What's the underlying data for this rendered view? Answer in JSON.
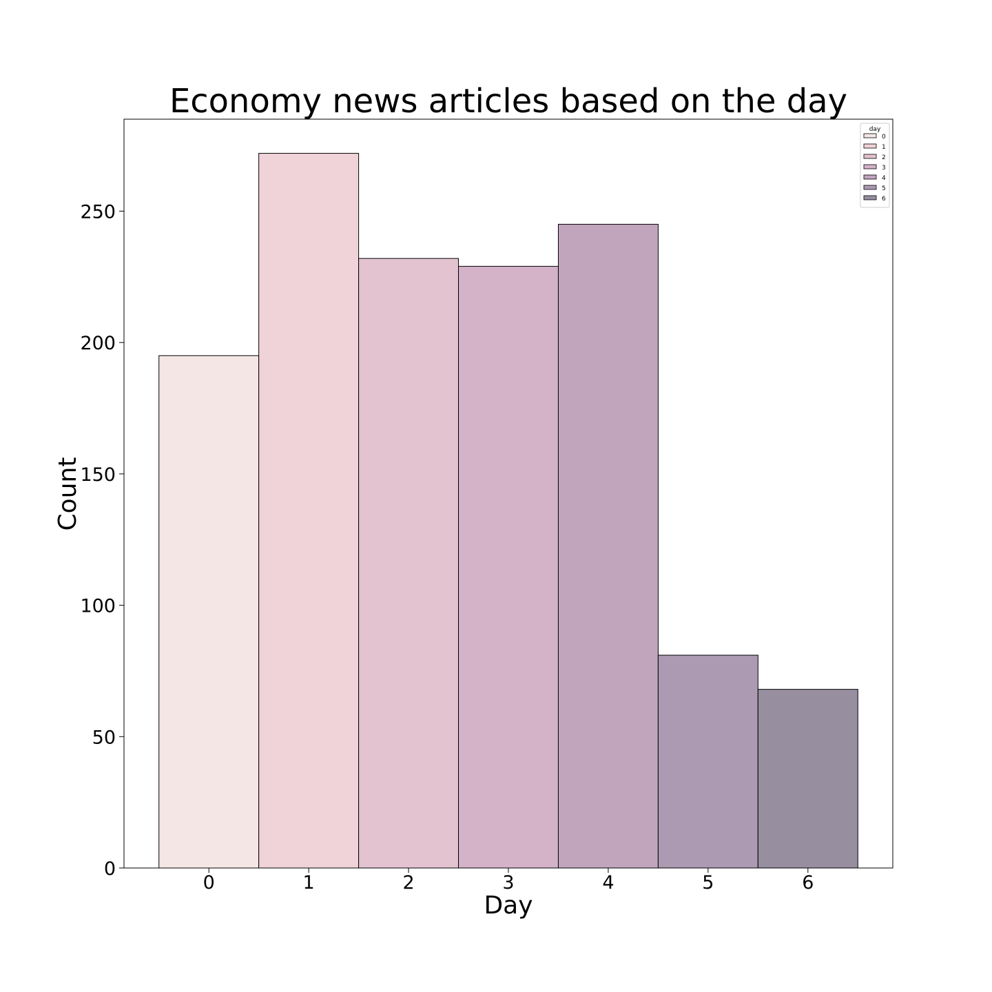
{
  "chart_data": {
    "type": "bar",
    "title": "Economy news articles based on the day",
    "xlabel": "Day",
    "ylabel": "Count",
    "categories": [
      "0",
      "1",
      "2",
      "3",
      "4",
      "5",
      "6"
    ],
    "values": [
      195,
      272,
      232,
      229,
      245,
      81,
      68
    ],
    "colors": [
      "#f5e6e6",
      "#f0d3d9",
      "#e3c3cf",
      "#d4b2c8",
      "#c1a5bd",
      "#ab9ab2",
      "#978e9f"
    ],
    "ylim": [
      0,
      285
    ],
    "yticks": [
      0,
      50,
      100,
      150,
      200,
      250
    ],
    "grid": false,
    "legend": {
      "title": "day",
      "placement": "top-right",
      "entries": [
        "0",
        "1",
        "2",
        "3",
        "4",
        "5",
        "6"
      ]
    }
  }
}
